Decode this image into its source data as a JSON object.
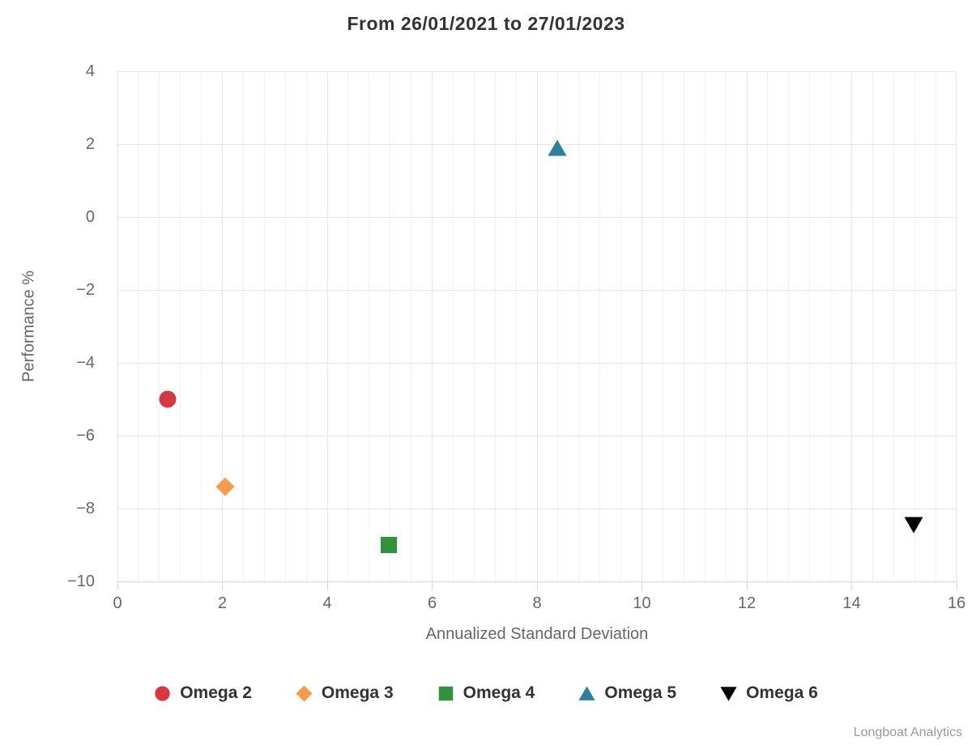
{
  "title": "From 26/01/2021 to 27/01/2023",
  "credits": "Longboat Analytics",
  "chart_data": {
    "type": "scatter",
    "title": "From 26/01/2021 to 27/01/2023",
    "xlabel": "Annualized Standard Deviation",
    "ylabel": "Performance %",
    "xlim": [
      0,
      16
    ],
    "ylim": [
      -10,
      4
    ],
    "xticks": [
      0,
      2,
      4,
      6,
      8,
      10,
      12,
      14,
      16
    ],
    "yticks": [
      -10,
      -8,
      -6,
      -4,
      -2,
      0,
      2,
      4
    ],
    "x_minor_interval": 0.4,
    "grid": true,
    "legend_position": "bottom",
    "colors": {
      "axis_line": "#ccd6eb",
      "major_grid": "#e6e6e6",
      "minor_grid": "#f2f2f2",
      "tick_text": "#666666",
      "title_text": "#333333"
    },
    "series": [
      {
        "name": "Omega 2",
        "symbol": "circle",
        "color": "#d5393f",
        "points": [
          {
            "x": 0.96,
            "y": -5.0
          }
        ]
      },
      {
        "name": "Omega 3",
        "symbol": "diamond",
        "color": "#f79a4a",
        "points": [
          {
            "x": 2.05,
            "y": -7.4
          }
        ]
      },
      {
        "name": "Omega 4",
        "symbol": "square",
        "color": "#31923c",
        "points": [
          {
            "x": 5.18,
            "y": -9.0
          }
        ]
      },
      {
        "name": "Omega 5",
        "symbol": "triangle-up",
        "color": "#2d7f9d",
        "points": [
          {
            "x": 8.39,
            "y": 1.9
          }
        ]
      },
      {
        "name": "Omega 6",
        "symbol": "triangle-down",
        "color": "#000000",
        "points": [
          {
            "x": 15.18,
            "y": -8.45
          }
        ]
      }
    ]
  }
}
